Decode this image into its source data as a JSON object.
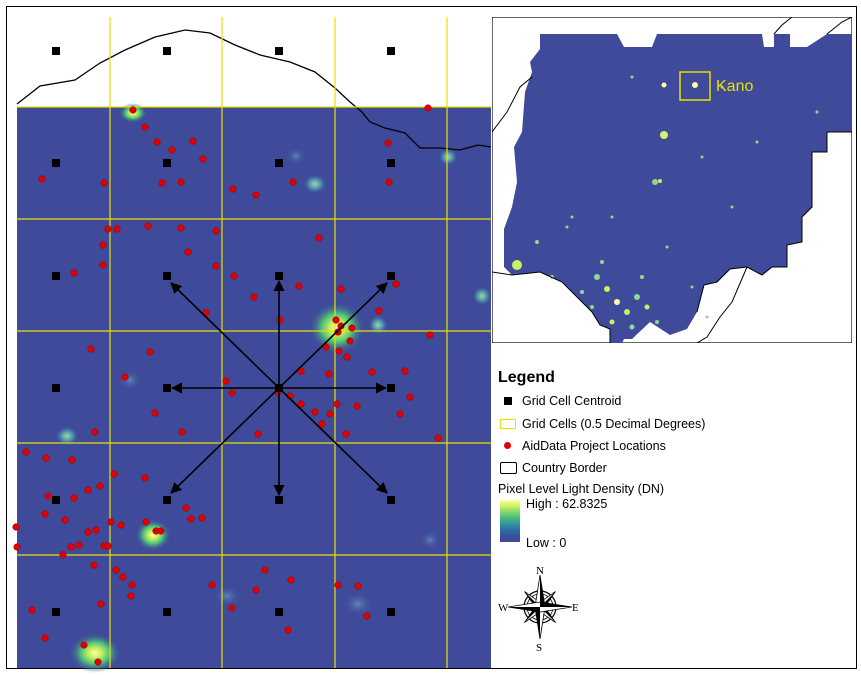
{
  "inset": {
    "city_label": "Kano"
  },
  "legend": {
    "title": "Legend",
    "items": [
      {
        "label": "Grid Cell Centroid",
        "symbol": "black-square"
      },
      {
        "label": "Grid Cells (0.5 Decimal Degrees)",
        "symbol": "yellow-outline-rectangle"
      },
      {
        "label": "AidData Project Locations",
        "symbol": "red-dot"
      },
      {
        "label": "Country Border",
        "symbol": "black-outline-rectangle"
      }
    ],
    "ramp": {
      "title": "Pixel Level Light Density (DN)",
      "high_label": "High : 62.8325",
      "low_label": "Low : 0"
    }
  },
  "compass": {
    "n": "N",
    "s": "S",
    "e": "E",
    "w": "W"
  },
  "colors": {
    "background_dark": "#3f4b9a",
    "grid_line": "#e8e000",
    "project_dot": "#e00000",
    "centroid": "#000000",
    "light_bright": "#ffffa0",
    "light_mid": "#4ec27a"
  }
}
